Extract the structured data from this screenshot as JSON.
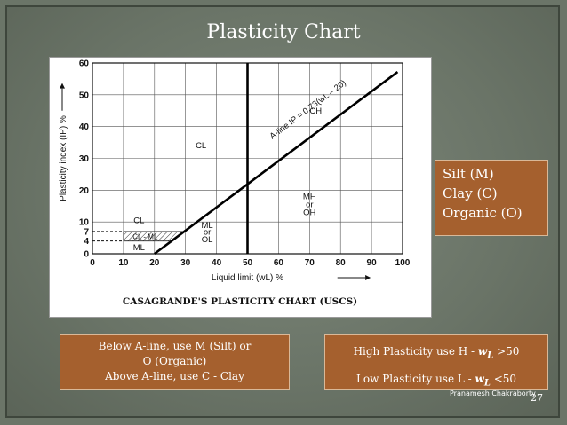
{
  "slide": {
    "title": "Plasticity Chart",
    "legend_lines": [
      "Silt (M)",
      "Clay (C)",
      "Organic (O)"
    ],
    "note_left_lines": [
      "Below A-line, use M (Silt) or",
      "O (Organic)",
      "Above A-line, use C - Clay"
    ],
    "note_right_lines": [
      "High Plasticity use H - wL >50",
      "Low Plasticity use  L - wL <50"
    ],
    "note_right_parts": [
      {
        "before": "High Plasticity use H - ",
        "var": "w",
        "sub": "L",
        "after": " >50"
      },
      {
        "before": "Low Plasticity use  L - ",
        "var": "w",
        "sub": "L",
        "after": " <50"
      }
    ],
    "author": "Pranamesh Chakraborty",
    "page_number": "27",
    "colors": {
      "background": "#6b7568",
      "accent_box": "#a5602e",
      "text": "#ffffff"
    }
  },
  "chart_data": {
    "type": "line",
    "title": "CASAGRANDE'S  PLASTICITY  CHART  (USCS)",
    "xlabel": "Liquid limit (wL) %",
    "ylabel": "Plasticity index (IP) %",
    "xlim": [
      0,
      100
    ],
    "ylim": [
      0,
      60
    ],
    "x_ticks": [
      0,
      10,
      20,
      30,
      40,
      50,
      60,
      70,
      80,
      90,
      100
    ],
    "y_ticks": [
      0,
      4,
      7,
      10,
      20,
      30,
      40,
      50,
      60
    ],
    "y_tick_labels": [
      "0",
      "4",
      "7",
      "10",
      "20",
      "30",
      "40",
      "50",
      "60"
    ],
    "grid": true,
    "series": [
      {
        "name": "A-line",
        "equation": "A-line IP = 0.73(wL – 20)",
        "x": [
          20,
          25.5,
          50,
          98.4
        ],
        "y": [
          0,
          4,
          21.9,
          57.2
        ]
      },
      {
        "name": "",
        "x": [
          50,
          50
        ],
        "y": [
          0,
          60
        ],
        "description": "vertical line wL = 50"
      }
    ],
    "annotations": [
      {
        "text": "CH",
        "x": 72,
        "y": 45
      },
      {
        "text": "CL",
        "x": 35,
        "y": 34
      },
      {
        "text": "CL",
        "x": 15,
        "y": 10.5
      },
      {
        "text": "MH",
        "x": 70,
        "y": 18
      },
      {
        "text": "or",
        "x": 70,
        "y": 15.5
      },
      {
        "text": "OH",
        "x": 70,
        "y": 13
      },
      {
        "text": "ML",
        "x": 37,
        "y": 9
      },
      {
        "text": "or",
        "x": 37,
        "y": 6.8
      },
      {
        "text": "OL",
        "x": 37,
        "y": 4.4
      },
      {
        "text": "CL - ML",
        "x": 17,
        "y": 5.5
      },
      {
        "text": "ML",
        "x": 15,
        "y": 2
      }
    ],
    "cl_ml_zone": {
      "x_from": 10,
      "x_to": 29.6,
      "y_from": 4,
      "y_to": 7
    },
    "dashed_levels": [
      4,
      7
    ]
  }
}
